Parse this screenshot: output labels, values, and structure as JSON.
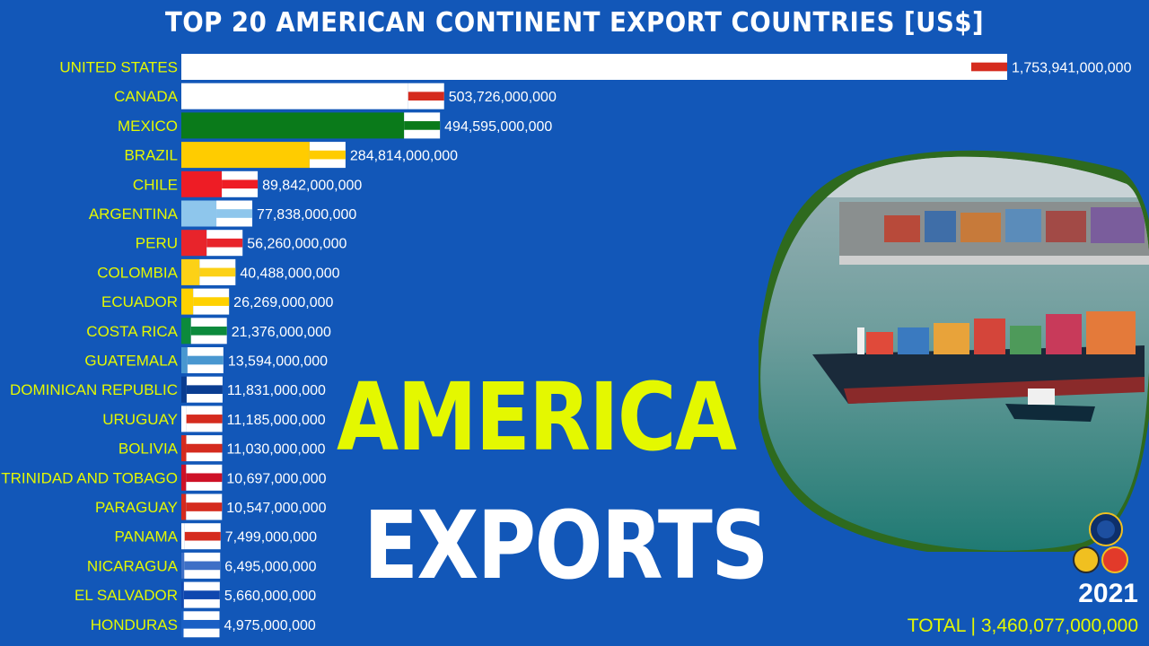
{
  "chart_data": {
    "type": "bar",
    "orientation": "horizontal",
    "title": "TOP 20 AMERICAN CONTINENT EXPORT COUNTRIES [US$]",
    "year": "2021",
    "total_label": "TOTAL | 3,460,077,000,000",
    "xlim": [
      0,
      1753941000000
    ],
    "grid": false,
    "categories": [
      "UNITED STATES",
      "CANADA",
      "MEXICO",
      "BRAZIL",
      "CHILE",
      "ARGENTINA",
      "PERU",
      "COLOMBIA",
      "ECUADOR",
      "COSTA RICA",
      "GUATEMALA",
      "DOMINICAN REPUBLIC",
      "URUGUAY",
      "BOLIVIA",
      "TRINIDAD AND TOBAGO",
      "PARAGUAY",
      "PANAMA",
      "NICARAGUA",
      "EL SALVADOR",
      "HONDURAS"
    ],
    "values": [
      1753941000000,
      503726000000,
      494595000000,
      284814000000,
      89842000000,
      77838000000,
      56260000000,
      40488000000,
      26269000000,
      21376000000,
      13594000000,
      11831000000,
      11185000000,
      11030000000,
      10697000000,
      10547000000,
      7499000000,
      6495000000,
      5660000000,
      4975000000
    ],
    "value_labels": [
      "1,753,941,000,000",
      "503,726,000,000",
      "494,595,000,000",
      "284,814,000,000",
      "89,842,000,000",
      "77,838,000,000",
      "56,260,000,000",
      "40,488,000,000",
      "26,269,000,000",
      "21,376,000,000",
      "13,594,000,000",
      "11,831,000,000",
      "11,185,000,000",
      "11,030,000,000",
      "10,697,000,000",
      "10,547,000,000",
      "7,499,000,000",
      "6,495,000,000",
      "5,660,000,000",
      "4,975,000,000"
    ],
    "bar_colors": [
      "#ffffff",
      "#ffffff",
      "#0a7a1a",
      "#ffcc00",
      "#ee1c25",
      "#8ec6ec",
      "#e8242b",
      "#fcd116",
      "#ffd100",
      "#0c8a3c",
      "#4997d0",
      "#0a3d91",
      "#ffffff",
      "#d52b1e",
      "#ce1126",
      "#d52b1e",
      "#ffffff",
      "#3e6fc6",
      "#0f47af",
      "#1a5fc4"
    ],
    "flags": [
      "us-flag-icon",
      "canada-flag-icon",
      "mexico-flag-icon",
      "brazil-flag-icon",
      "chile-flag-icon",
      "argentina-flag-icon",
      "peru-flag-icon",
      "colombia-flag-icon",
      "ecuador-flag-icon",
      "costa-rica-flag-icon",
      "guatemala-flag-icon",
      "dominican-republic-flag-icon",
      "uruguay-flag-icon",
      "bolivia-flag-icon",
      "trinidad-and-tobago-flag-icon",
      "paraguay-flag-icon",
      "panama-flag-icon",
      "nicaragua-flag-icon",
      "el-salvador-flag-icon",
      "honduras-flag-icon"
    ]
  },
  "overlay": {
    "line1": "AMERICA",
    "line2": "EXPORTS"
  },
  "colors": {
    "background": "#1257b8",
    "label_text": "#e4f800",
    "value_text": "#ffffff",
    "headline_yellow": "#e4f800"
  }
}
